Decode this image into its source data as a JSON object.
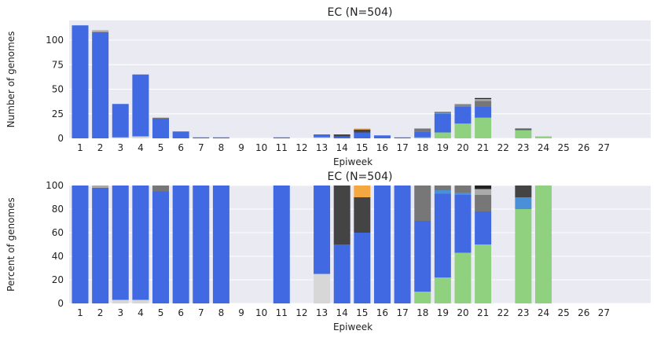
{
  "colors": {
    "plot_bg": "#EAEAF2",
    "grid": "#FFFFFF",
    "text": "#222222"
  },
  "chart_data": [
    {
      "type": "bar",
      "stacked": true,
      "title": "EC (N=504)",
      "xlabel": "Epiweek",
      "ylabel": "Number of genomes",
      "ylim": [
        0,
        120
      ],
      "yticks": [
        0,
        25,
        50,
        75,
        100
      ],
      "grid": true,
      "categories": [
        "1",
        "2",
        "3",
        "4",
        "5",
        "6",
        "7",
        "8",
        "9",
        "10",
        "11",
        "12",
        "13",
        "14",
        "15",
        "16",
        "17",
        "18",
        "19",
        "20",
        "21",
        "22",
        "23",
        "24",
        "25",
        "26",
        "27"
      ],
      "series": [
        {
          "color": "#8FD17F",
          "values": [
            0,
            0,
            0,
            0,
            0,
            0,
            0,
            0,
            0,
            0,
            0,
            0,
            0,
            0,
            0,
            0,
            0,
            1,
            6,
            15,
            21,
            0,
            8,
            2,
            0,
            0,
            0
          ]
        },
        {
          "color": "#D7D7D7",
          "values": [
            0,
            0,
            1,
            2,
            0,
            0,
            0,
            0,
            0,
            0,
            0,
            0,
            1,
            0,
            0,
            0,
            0,
            0,
            0,
            0,
            0,
            0,
            0,
            0,
            0,
            0,
            0
          ]
        },
        {
          "color": "#4169E1",
          "values": [
            115,
            108,
            34,
            63,
            20,
            7,
            1,
            1,
            0,
            0,
            1,
            0,
            3,
            2,
            6,
            3,
            1,
            6,
            19,
            17,
            11,
            0,
            0,
            0,
            0,
            0,
            0
          ]
        },
        {
          "color": "#4A90D9",
          "values": [
            0,
            0,
            0,
            0,
            0,
            0,
            0,
            0,
            0,
            0,
            0,
            0,
            0,
            0,
            0,
            0,
            0,
            0,
            1,
            1,
            0,
            0,
            1,
            0,
            0,
            0,
            0
          ]
        },
        {
          "color": "#444444",
          "values": [
            0,
            0,
            0,
            0,
            0,
            0,
            0,
            0,
            0,
            0,
            0,
            0,
            0,
            2,
            3,
            0,
            0,
            0,
            0,
            0,
            0,
            0,
            1,
            0,
            0,
            0,
            0
          ]
        },
        {
          "color": "#777777",
          "values": [
            0,
            0,
            0,
            0,
            1,
            0,
            0,
            0,
            0,
            0,
            0,
            0,
            0,
            0,
            0,
            0,
            0,
            3,
            1,
            1,
            6,
            0,
            0,
            0,
            0,
            0,
            0
          ]
        },
        {
          "color": "#AAAAAA",
          "values": [
            0,
            2,
            0,
            0,
            0,
            0,
            0,
            0,
            0,
            0,
            0,
            0,
            0,
            0,
            0,
            0,
            0,
            0,
            0,
            0,
            2,
            0,
            0,
            0,
            0,
            0,
            0
          ]
        },
        {
          "color": "#999999",
          "values": [
            0,
            0,
            0,
            0,
            0,
            0,
            0,
            0,
            0,
            0,
            0,
            0,
            0,
            0,
            0,
            0,
            0,
            0,
            0,
            1,
            0,
            0,
            0,
            0,
            0,
            0,
            0
          ]
        },
        {
          "color": "#F5A742",
          "values": [
            0,
            0,
            0,
            0,
            0,
            0,
            0,
            0,
            0,
            0,
            0,
            0,
            0,
            0,
            1,
            0,
            0,
            0,
            0,
            0,
            0,
            0,
            0,
            0,
            0,
            0,
            0
          ]
        },
        {
          "color": "#222222",
          "values": [
            0,
            0,
            0,
            0,
            0,
            0,
            0,
            0,
            0,
            0,
            0,
            0,
            0,
            0,
            0,
            0,
            0,
            0,
            0,
            0,
            1,
            0,
            0,
            0,
            0,
            0,
            0
          ]
        }
      ]
    },
    {
      "type": "bar",
      "stacked": true,
      "title": "EC (N=504)",
      "xlabel": "Epiweek",
      "ylabel": "Percent of genomes",
      "ylim": [
        0,
        100
      ],
      "yticks": [
        0,
        20,
        40,
        60,
        80,
        100
      ],
      "grid": true,
      "categories": [
        "1",
        "2",
        "3",
        "4",
        "5",
        "6",
        "7",
        "8",
        "9",
        "10",
        "11",
        "12",
        "13",
        "14",
        "15",
        "16",
        "17",
        "18",
        "19",
        "20",
        "21",
        "22",
        "23",
        "24",
        "25",
        "26",
        "27"
      ],
      "series": [
        {
          "color": "#8FD17F",
          "values": [
            0,
            0,
            0,
            0,
            0,
            0,
            0,
            0,
            0,
            0,
            0,
            0,
            0,
            0,
            0,
            0,
            0,
            10,
            22,
            43,
            50,
            0,
            80,
            100,
            0,
            0,
            0
          ]
        },
        {
          "color": "#D7D7D7",
          "values": [
            0,
            0,
            3,
            3,
            0,
            0,
            0,
            0,
            0,
            0,
            0,
            0,
            25,
            0,
            0,
            0,
            0,
            0,
            0,
            0,
            0,
            0,
            0,
            0,
            0,
            0,
            0
          ]
        },
        {
          "color": "#4169E1",
          "values": [
            100,
            98,
            97,
            97,
            95,
            100,
            100,
            100,
            0,
            0,
            100,
            0,
            75,
            50,
            60,
            100,
            100,
            60,
            71,
            49,
            28,
            0,
            0,
            0,
            0,
            0,
            0
          ]
        },
        {
          "color": "#4A90D9",
          "values": [
            0,
            0,
            0,
            0,
            0,
            0,
            0,
            0,
            0,
            0,
            0,
            0,
            0,
            0,
            0,
            0,
            0,
            0,
            3,
            2,
            0,
            0,
            10,
            0,
            0,
            0,
            0
          ]
        },
        {
          "color": "#444444",
          "values": [
            0,
            0,
            0,
            0,
            0,
            0,
            0,
            0,
            0,
            0,
            0,
            0,
            0,
            50,
            30,
            0,
            0,
            0,
            0,
            0,
            0,
            0,
            10,
            0,
            0,
            0,
            0
          ]
        },
        {
          "color": "#777777",
          "values": [
            0,
            0,
            0,
            0,
            5,
            0,
            0,
            0,
            0,
            0,
            0,
            0,
            0,
            0,
            0,
            0,
            0,
            30,
            4,
            6,
            14,
            0,
            0,
            0,
            0,
            0,
            0
          ]
        },
        {
          "color": "#AAAAAA",
          "values": [
            0,
            2,
            0,
            0,
            0,
            0,
            0,
            0,
            0,
            0,
            0,
            0,
            0,
            0,
            0,
            0,
            0,
            0,
            0,
            0,
            5,
            0,
            0,
            0,
            0,
            0,
            0
          ]
        },
        {
          "color": "#F5A742",
          "values": [
            0,
            0,
            0,
            0,
            0,
            0,
            0,
            0,
            0,
            0,
            0,
            0,
            0,
            0,
            10,
            0,
            0,
            0,
            0,
            0,
            0,
            0,
            0,
            0,
            0,
            0,
            0
          ]
        },
        {
          "color": "#222222",
          "values": [
            0,
            0,
            0,
            0,
            0,
            0,
            0,
            0,
            0,
            0,
            0,
            0,
            0,
            0,
            0,
            0,
            0,
            0,
            0,
            0,
            3,
            0,
            0,
            0,
            0,
            0,
            0
          ]
        }
      ]
    }
  ]
}
